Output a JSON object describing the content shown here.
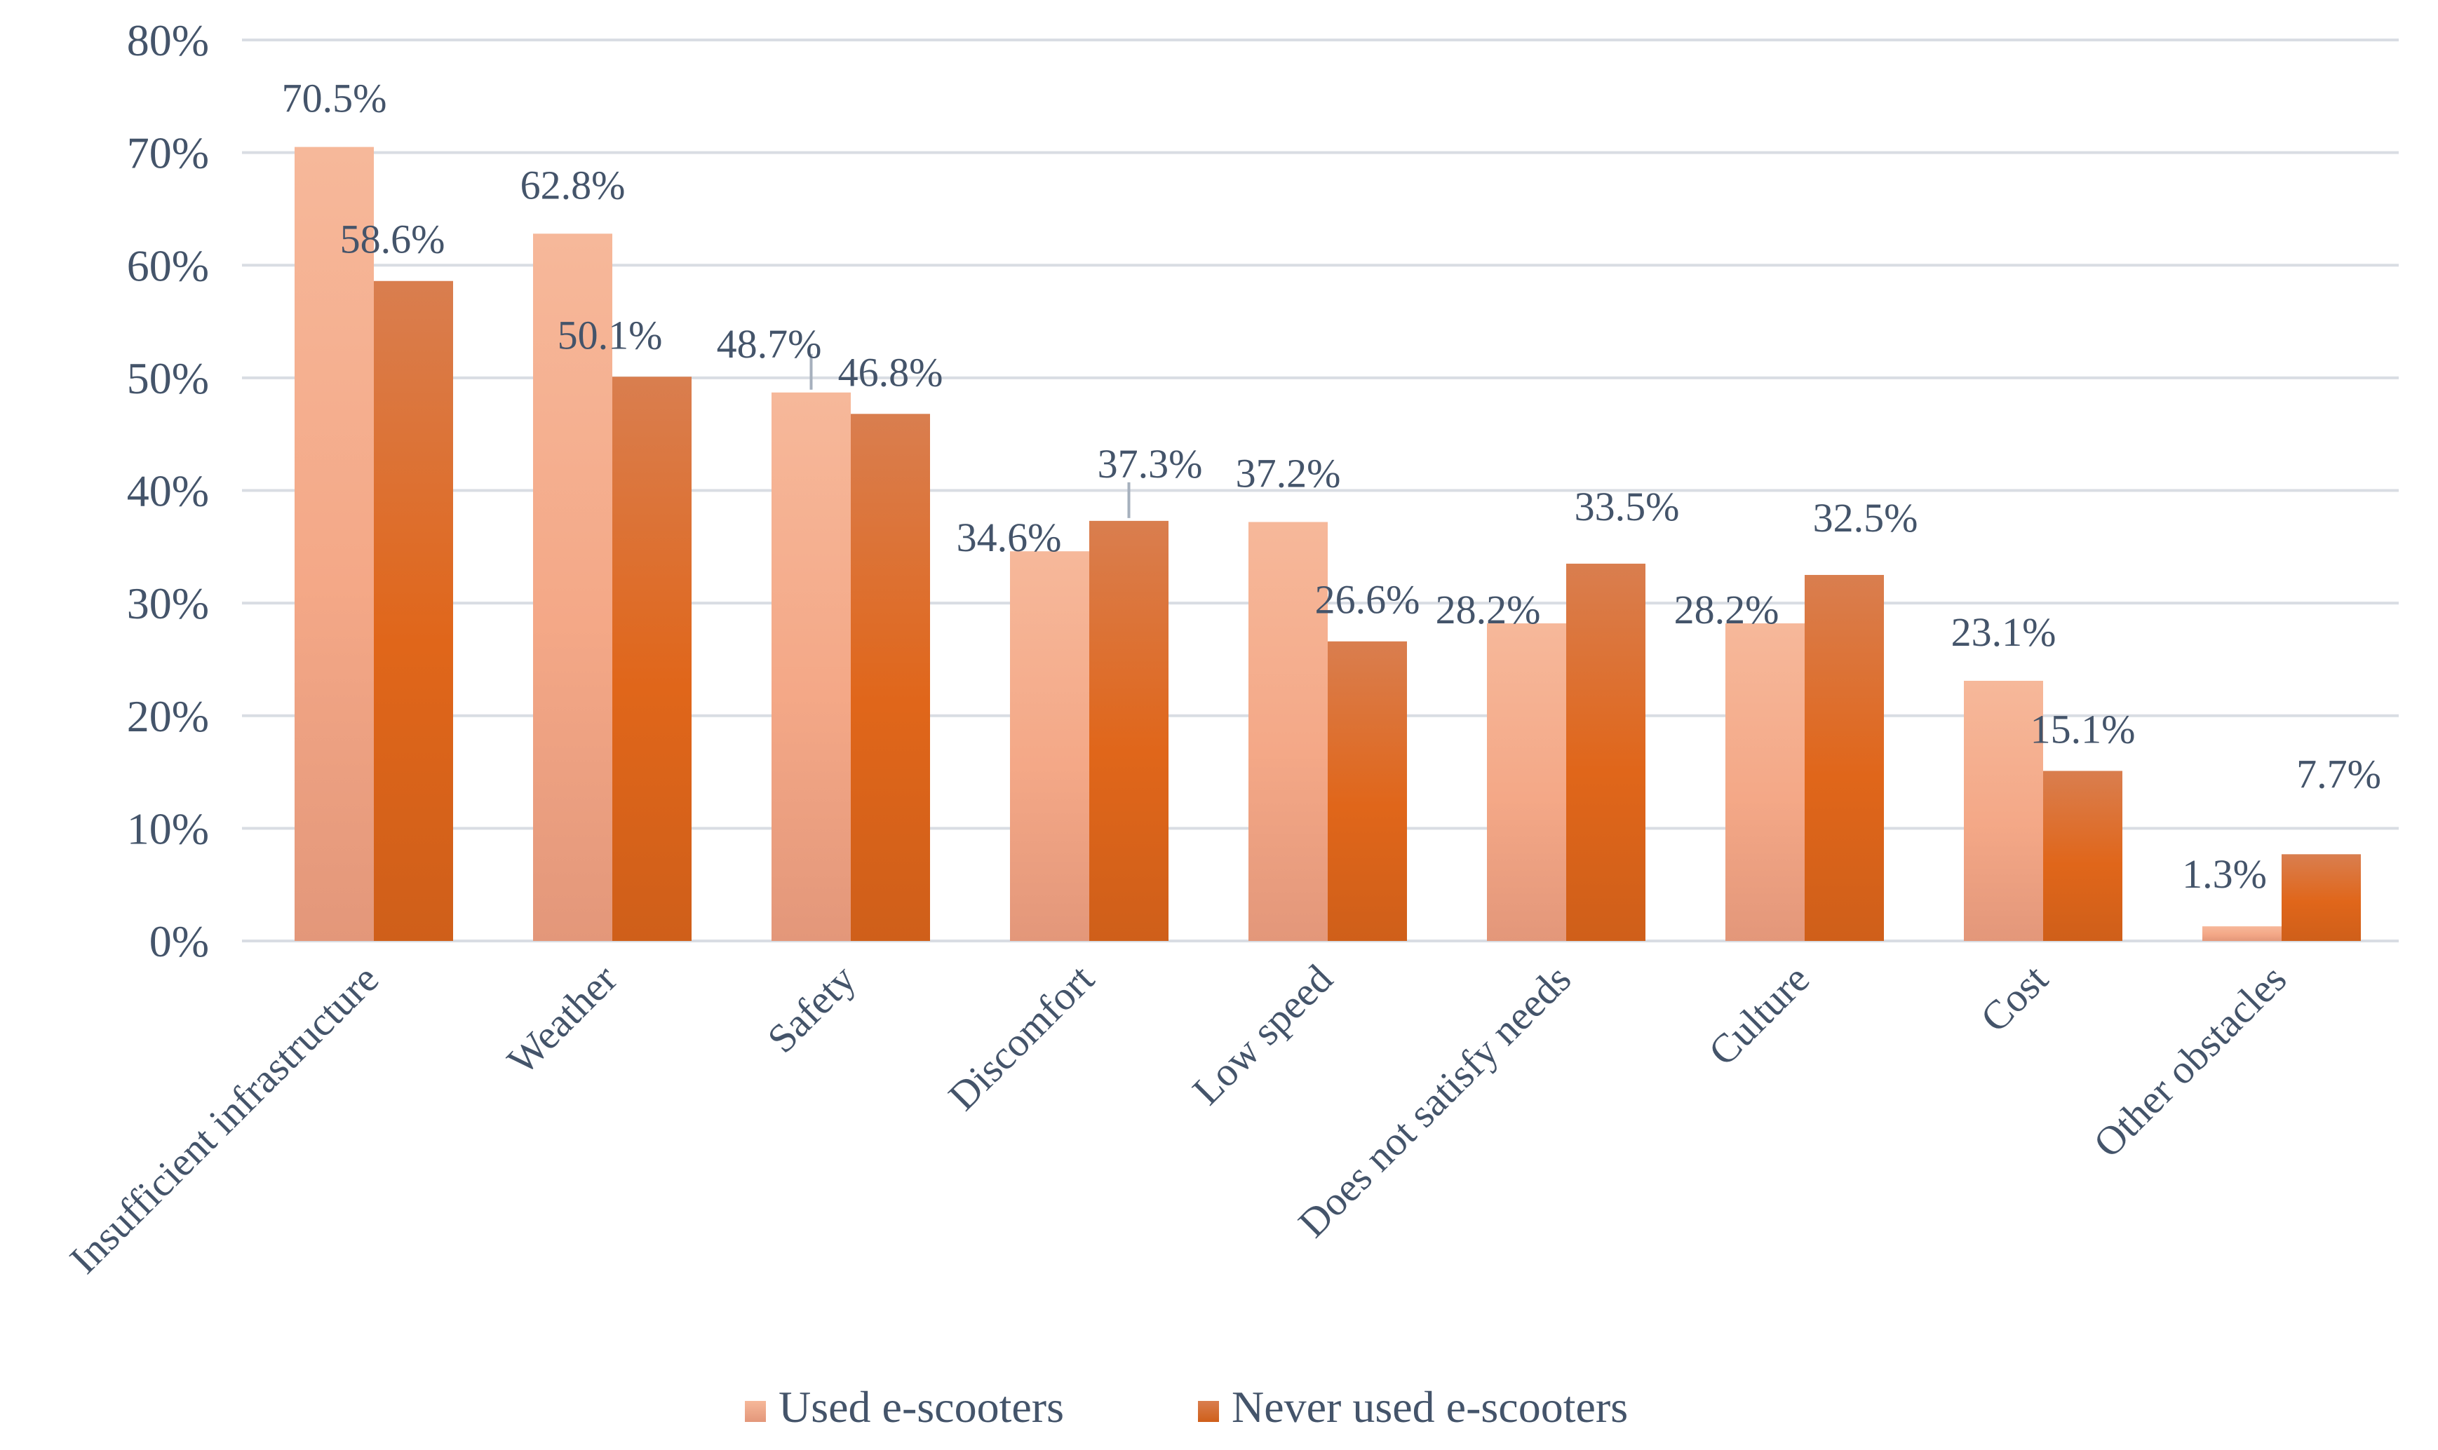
{
  "chart_data": {
    "type": "bar",
    "title": "",
    "xlabel": "",
    "ylabel": "",
    "ylim": [
      0,
      80
    ],
    "yticks": [
      0,
      10,
      20,
      30,
      40,
      50,
      60,
      70,
      80
    ],
    "ytick_labels": [
      "0%",
      "10%",
      "20%",
      "30%",
      "40%",
      "50%",
      "60%",
      "70%",
      "80%"
    ],
    "grid": true,
    "legend_position": "bottom",
    "categories": [
      "Insufficient infrastructure",
      "Weather",
      "Safety",
      "Discomfort",
      "Low speed",
      "Does not satisfy needs",
      "Culture",
      "Cost",
      "Other obstacles"
    ],
    "series": [
      {
        "name": "Used e-scooters",
        "color": "#f4b093",
        "color_dark": "#e2957a",
        "values": [
          70.5,
          62.8,
          48.7,
          34.6,
          37.2,
          28.2,
          28.2,
          23.1,
          1.3
        ],
        "labels": [
          "70.5%",
          "62.8%",
          "48.7%",
          "34.6%",
          "37.2%",
          "28.2%",
          "28.2%",
          "23.1%",
          "1.3%"
        ]
      },
      {
        "name": "Never used e-scooters",
        "color": "#d97e4f",
        "color_dark": "#e0661a",
        "values": [
          58.6,
          50.1,
          46.8,
          37.3,
          26.6,
          33.5,
          32.5,
          15.1,
          7.7
        ],
        "labels": [
          "58.6%",
          "50.1%",
          "46.8%",
          "37.3%",
          "26.6%",
          "33.5%",
          "32.5%",
          "15.1%",
          "7.7%"
        ]
      }
    ]
  }
}
